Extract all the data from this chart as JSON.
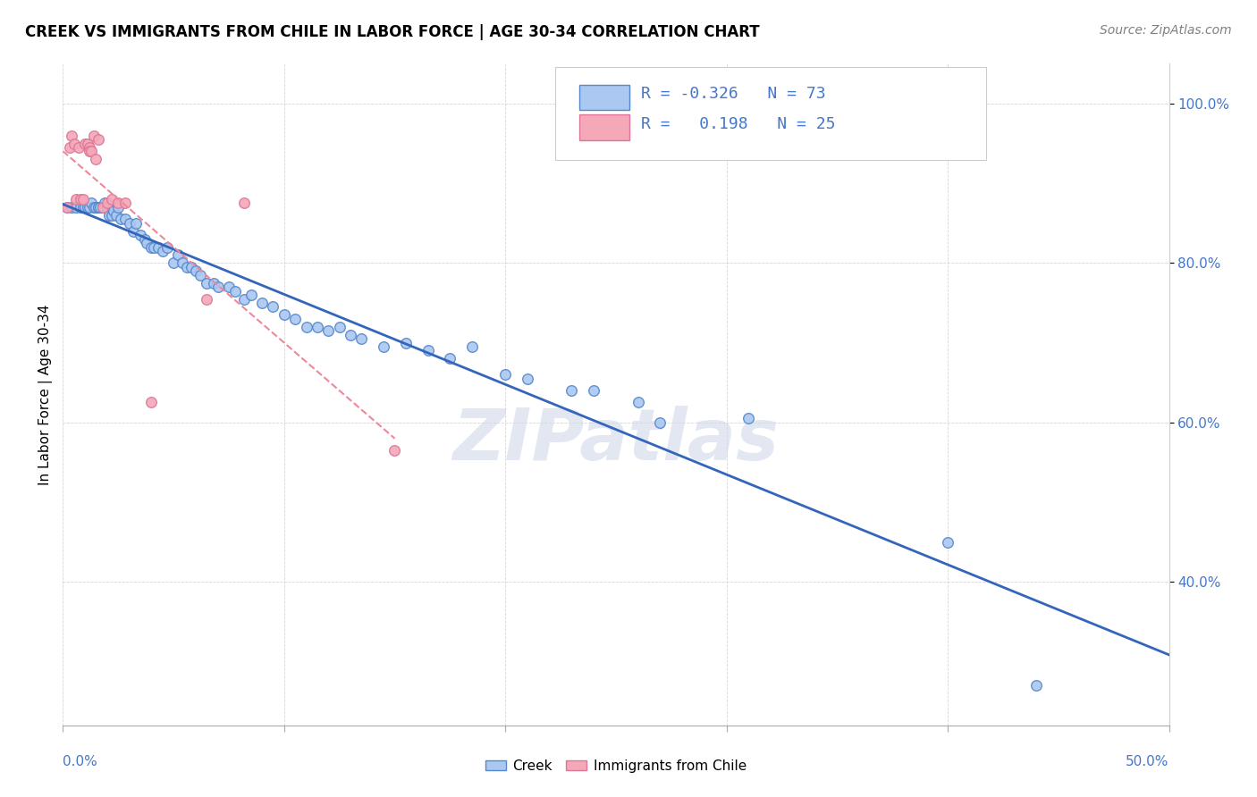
{
  "title": "CREEK VS IMMIGRANTS FROM CHILE IN LABOR FORCE | AGE 30-34 CORRELATION CHART",
  "source": "Source: ZipAtlas.com",
  "ylabel": "In Labor Force | Age 30-34",
  "y_ticks": [
    0.6,
    0.8,
    1.0
  ],
  "y_tick_labels": [
    "60.0%",
    "80.0%",
    "100.0%"
  ],
  "extra_y_ticks": [
    0.4
  ],
  "extra_y_tick_labels": [
    "40.0%"
  ],
  "x_min": 0.0,
  "x_max": 0.5,
  "y_min": 0.22,
  "y_max": 1.05,
  "legend_R_creek": "-0.326",
  "legend_N_creek": "73",
  "legend_R_chile": "0.198",
  "legend_N_chile": "25",
  "creek_color": "#aac8f0",
  "chile_color": "#f4a8b8",
  "creek_edge_color": "#5588cc",
  "chile_edge_color": "#dd7799",
  "creek_line_color": "#3366bb",
  "chile_line_color": "#ee8899",
  "watermark": "ZIPatlas",
  "creek_x": [
    0.002,
    0.004,
    0.006,
    0.008,
    0.009,
    0.01,
    0.011,
    0.012,
    0.013,
    0.014,
    0.015,
    0.016,
    0.016,
    0.017,
    0.018,
    0.019,
    0.02,
    0.021,
    0.022,
    0.023,
    0.024,
    0.025,
    0.026,
    0.028,
    0.03,
    0.032,
    0.033,
    0.035,
    0.037,
    0.038,
    0.04,
    0.041,
    0.043,
    0.045,
    0.047,
    0.05,
    0.052,
    0.054,
    0.056,
    0.058,
    0.06,
    0.062,
    0.065,
    0.068,
    0.07,
    0.075,
    0.078,
    0.082,
    0.085,
    0.09,
    0.095,
    0.1,
    0.105,
    0.11,
    0.115,
    0.12,
    0.125,
    0.13,
    0.135,
    0.145,
    0.155,
    0.165,
    0.175,
    0.185,
    0.2,
    0.21,
    0.23,
    0.24,
    0.26,
    0.27,
    0.31,
    0.4,
    0.44
  ],
  "creek_y": [
    0.87,
    0.87,
    0.87,
    0.87,
    0.87,
    0.87,
    0.87,
    0.87,
    0.875,
    0.87,
    0.87,
    0.87,
    0.87,
    0.87,
    0.87,
    0.875,
    0.87,
    0.86,
    0.86,
    0.865,
    0.86,
    0.87,
    0.855,
    0.855,
    0.85,
    0.84,
    0.85,
    0.835,
    0.83,
    0.825,
    0.82,
    0.82,
    0.82,
    0.815,
    0.82,
    0.8,
    0.81,
    0.8,
    0.795,
    0.795,
    0.79,
    0.785,
    0.775,
    0.775,
    0.77,
    0.77,
    0.765,
    0.755,
    0.76,
    0.75,
    0.745,
    0.735,
    0.73,
    0.72,
    0.72,
    0.715,
    0.72,
    0.71,
    0.705,
    0.695,
    0.7,
    0.69,
    0.68,
    0.695,
    0.66,
    0.655,
    0.64,
    0.64,
    0.625,
    0.6,
    0.605,
    0.45,
    0.27
  ],
  "chile_x": [
    0.002,
    0.003,
    0.004,
    0.005,
    0.006,
    0.007,
    0.008,
    0.009,
    0.01,
    0.011,
    0.012,
    0.012,
    0.013,
    0.014,
    0.015,
    0.016,
    0.018,
    0.02,
    0.022,
    0.025,
    0.028,
    0.04,
    0.065,
    0.082,
    0.15
  ],
  "chile_y": [
    0.87,
    0.945,
    0.96,
    0.95,
    0.88,
    0.945,
    0.88,
    0.88,
    0.95,
    0.95,
    0.945,
    0.94,
    0.94,
    0.96,
    0.93,
    0.955,
    0.87,
    0.875,
    0.88,
    0.875,
    0.875,
    0.625,
    0.755,
    0.875,
    0.565
  ],
  "x_tick_positions": [
    0.0,
    0.1,
    0.2,
    0.3,
    0.4,
    0.5
  ],
  "watermark_text": "ZIPatlas",
  "watermark_color": "#d0d8e8",
  "watermark_alpha": 0.6
}
